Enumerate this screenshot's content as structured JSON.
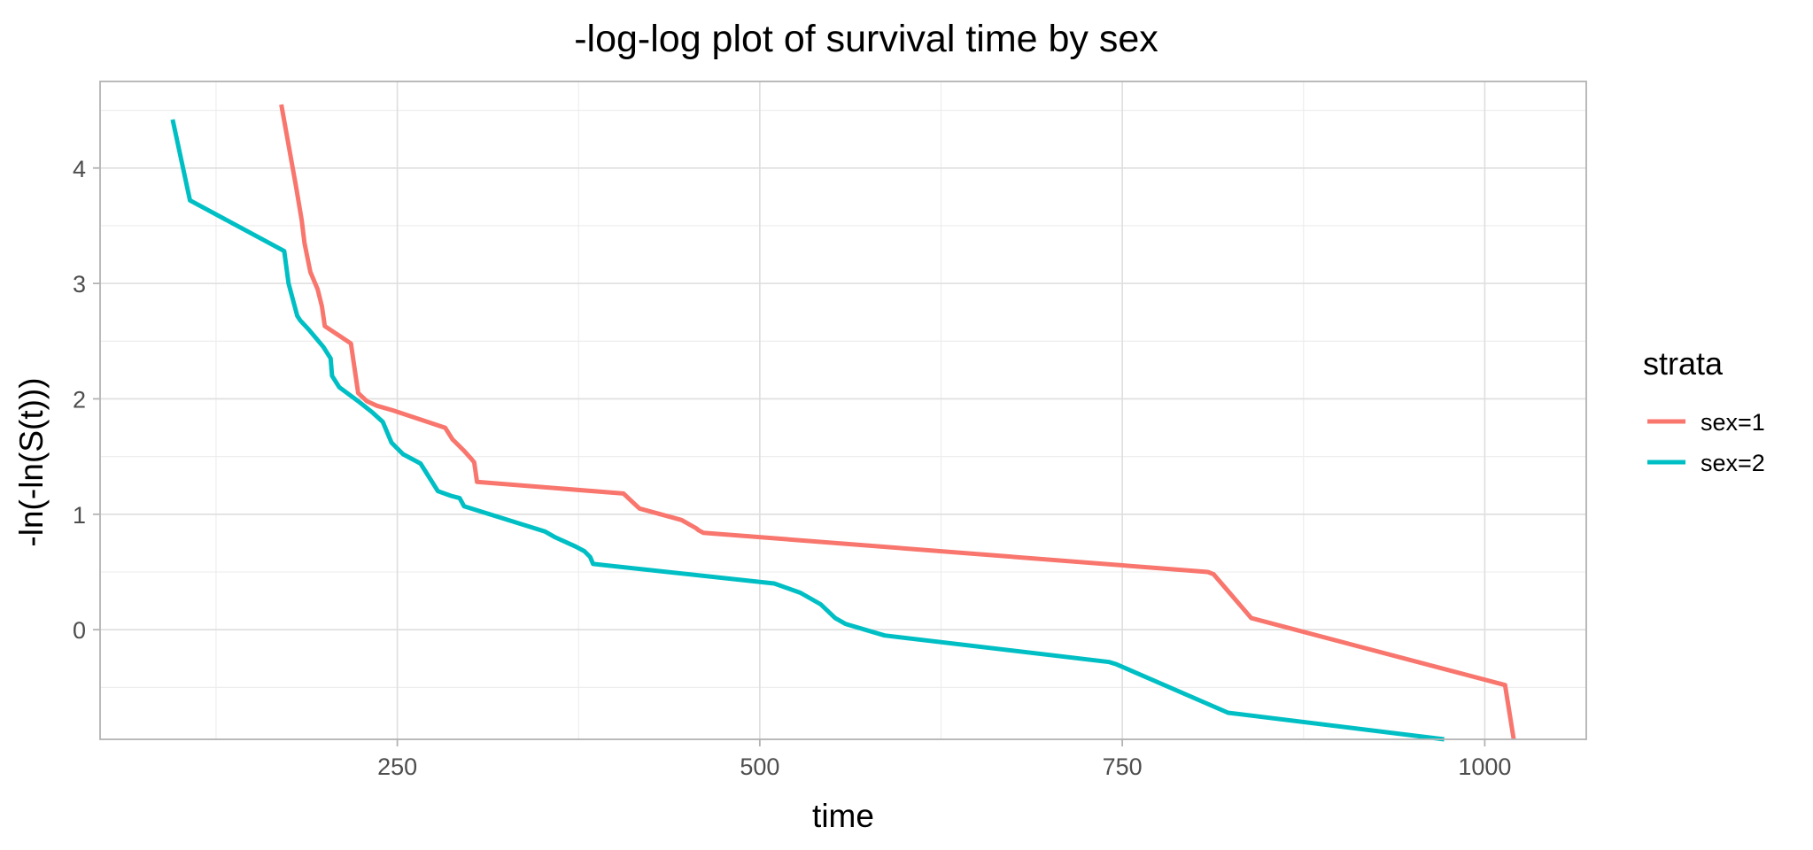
{
  "chart_data": {
    "type": "line",
    "title": "-log-log plot of survival time by sex",
    "xlabel": "time",
    "ylabel": "-ln(-ln(S(t)))",
    "xlim": [
      45,
      1070
    ],
    "ylim": [
      -0.95,
      4.75
    ],
    "x_major_ticks": [
      250,
      500,
      750,
      1000
    ],
    "x_minor_ticks": [
      125,
      375,
      625,
      875
    ],
    "y_major_ticks": [
      0,
      1,
      2,
      3,
      4
    ],
    "y_minor_ticks": [
      -0.5,
      0.5,
      1.5,
      2.5,
      3.5,
      4.5
    ],
    "x_tick_labels": [
      "250",
      "500",
      "750",
      "1000"
    ],
    "y_tick_labels": [
      "0",
      "1",
      "2",
      "3",
      "4"
    ],
    "grid": true,
    "legend": {
      "title": "strata",
      "placement": "right"
    },
    "series": [
      {
        "name": "sex=1",
        "color": "#F8766D",
        "x": [
          170,
          180,
          184,
          186,
          190,
          195,
          198,
          200,
          218,
          223,
          229,
          236,
          247,
          283,
          288,
          292,
          296,
          301,
          303,
          305,
          406,
          411,
          417,
          446,
          456,
          458,
          461,
          809,
          813,
          839,
          1014,
          1020
        ],
        "y": [
          4.55,
          3.85,
          3.55,
          3.35,
          3.1,
          2.95,
          2.8,
          2.63,
          2.48,
          2.05,
          1.98,
          1.94,
          1.9,
          1.75,
          1.65,
          1.6,
          1.55,
          1.48,
          1.45,
          1.28,
          1.18,
          1.12,
          1.05,
          0.95,
          0.88,
          0.86,
          0.84,
          0.5,
          0.48,
          0.1,
          -0.48,
          -0.95
        ]
      },
      {
        "name": "sex=2",
        "color": "#00BFC4",
        "x": [
          95,
          107,
          172,
          175,
          181,
          183,
          189,
          199,
          204,
          205,
          210,
          223,
          233,
          240,
          246,
          254,
          266,
          278,
          287,
          293,
          296,
          352,
          359,
          373,
          379,
          383,
          385,
          510,
          528,
          542,
          552,
          559,
          586,
          741,
          746,
          823,
          972
        ],
        "y": [
          4.42,
          3.72,
          3.28,
          3.0,
          2.72,
          2.68,
          2.6,
          2.45,
          2.35,
          2.2,
          2.1,
          1.98,
          1.88,
          1.8,
          1.62,
          1.52,
          1.44,
          1.2,
          1.16,
          1.14,
          1.07,
          0.85,
          0.8,
          0.72,
          0.68,
          0.63,
          0.57,
          0.4,
          0.32,
          0.22,
          0.1,
          0.05,
          -0.05,
          -0.28,
          -0.3,
          -0.72,
          -0.95
        ]
      }
    ]
  }
}
